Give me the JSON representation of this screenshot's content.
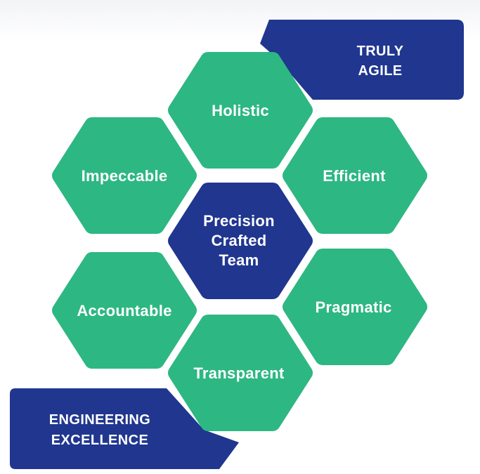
{
  "colors": {
    "green": "#2db783",
    "navy": "#20368f",
    "white": "#ffffff"
  },
  "banners": {
    "top": {
      "lines": [
        "TRULY",
        "AGILE"
      ]
    },
    "bottom": {
      "lines": [
        "ENGINEERING",
        "EXCELLENCE"
      ]
    }
  },
  "center": {
    "lines": [
      "Precision",
      "Crafted",
      "Team"
    ]
  },
  "hexagons": {
    "holistic": {
      "label": "Holistic"
    },
    "impeccable": {
      "label": "Impeccable"
    },
    "efficient": {
      "label": "Efficient"
    },
    "accountable": {
      "label": "Accountable"
    },
    "pragmatic": {
      "label": "Pragmatic"
    },
    "transparent": {
      "label": "Transparent"
    }
  }
}
